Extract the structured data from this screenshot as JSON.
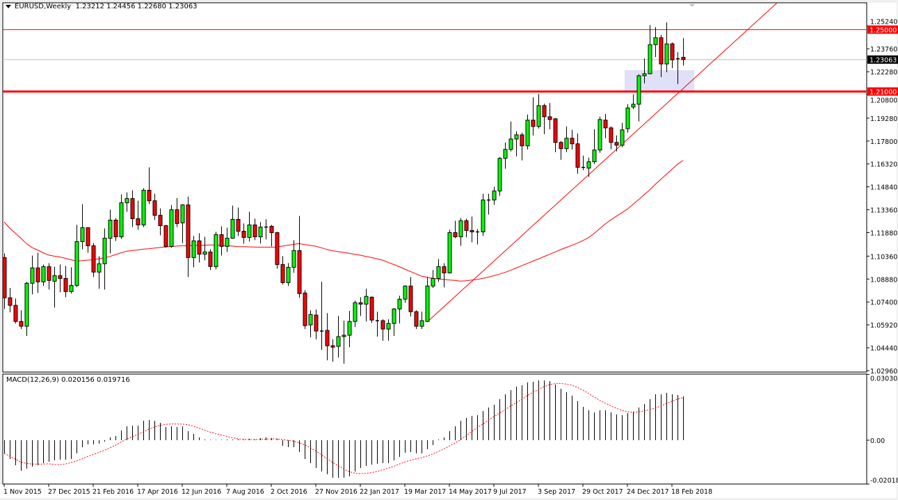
{
  "header": {
    "symbol_timeframe": "EURUSD,Weekly",
    "ohlc": "1.23212 1.24456 1.22680 1.23063"
  },
  "macd_header": {
    "label": "MACD(12,26,9)",
    "values": "0.020156 0.019716"
  },
  "colors": {
    "bull": "#00ff00",
    "bear": "#ff0000",
    "outline": "#000000",
    "ma_line": "#ff0000",
    "trendline": "#ff0000",
    "level_line": "#ff0000",
    "current_price_line": "#c0c0c0",
    "zone_fill": "#e0e0f8",
    "macd_histogram": "#000000",
    "macd_signal": "#ff0000"
  },
  "chart_data": [
    {
      "type": "candlestick",
      "symbol": "EURUSD",
      "timeframe": "Weekly",
      "x_start": "1 Nov 2015",
      "x_tick_labels": [
        "1 Nov 2015",
        "27 Dec 2015",
        "21 Feb 2016",
        "17 Apr 2016",
        "12 Jun 2016",
        "7 Aug 2016",
        "2 Oct 2016",
        "27 Nov 2016",
        "22 Jan 2017",
        "19 Mar 2017",
        "14 May 2017",
        "9 Jul 2017",
        "3 Sep 2017",
        "29 Oct 2017",
        "24 Dec 2017",
        "18 Feb 2018"
      ],
      "x_tick_bars": [
        1,
        9,
        17,
        25,
        33,
        41,
        49,
        57,
        65,
        73,
        81,
        89,
        97,
        105,
        113,
        121
      ],
      "y_tick_labels": [
        "1.25240",
        "1.23760",
        "1.22280",
        "1.20800",
        "1.19280",
        "1.17800",
        "1.16320",
        "1.14840",
        "1.13360",
        "1.11880",
        "1.10360",
        "1.08880",
        "1.07400",
        "1.05920",
        "1.04440",
        "1.02960"
      ],
      "ylim": [
        1.0296,
        1.2671
      ],
      "ohlc_columns": [
        "open",
        "high",
        "low",
        "close"
      ],
      "candles": [
        [
          1.1027,
          1.1054,
          1.0695,
          1.0767
        ],
        [
          1.0767,
          1.083,
          1.0673,
          1.0718
        ],
        [
          1.0718,
          1.0762,
          1.0601,
          1.0614
        ],
        [
          1.0614,
          1.0686,
          1.0565,
          1.0583
        ],
        [
          1.0583,
          1.087,
          1.052,
          1.0861
        ],
        [
          1.0861,
          1.104,
          1.0789,
          1.096
        ],
        [
          1.096,
          1.1058,
          1.0798,
          1.087
        ],
        [
          1.087,
          1.0982,
          1.0843,
          1.0968
        ],
        [
          1.0968,
          1.0991,
          1.082,
          1.0879
        ],
        [
          1.0874,
          1.0968,
          1.0704,
          1.091
        ],
        [
          1.091,
          1.0982,
          1.0803,
          1.0892
        ],
        [
          1.0892,
          1.0973,
          1.0771,
          1.0807
        ],
        [
          1.0807,
          1.0964,
          1.0795,
          1.0847
        ],
        [
          1.0847,
          1.1238,
          1.0834,
          1.113
        ],
        [
          1.113,
          1.1372,
          1.1081,
          1.122
        ],
        [
          1.122,
          1.1224,
          1.1058,
          1.1103
        ],
        [
          1.1103,
          1.1121,
          1.0901,
          1.0933
        ],
        [
          1.0933,
          1.1036,
          1.0825,
          1.0987
        ],
        [
          1.0987,
          1.1215,
          1.082,
          1.1152
        ],
        [
          1.1152,
          1.1336,
          1.1054,
          1.1269
        ],
        [
          1.1269,
          1.1282,
          1.1134,
          1.1161
        ],
        [
          1.1161,
          1.1435,
          1.1148,
          1.1381
        ],
        [
          1.1381,
          1.1448,
          1.1323,
          1.1408
        ],
        [
          1.1408,
          1.1462,
          1.1224,
          1.1278
        ],
        [
          1.1278,
          1.1394,
          1.1206,
          1.1238
        ],
        [
          1.1238,
          1.1475,
          1.1224,
          1.1462
        ],
        [
          1.1462,
          1.161,
          1.1372,
          1.1394
        ],
        [
          1.1394,
          1.1439,
          1.127,
          1.13
        ],
        [
          1.13,
          1.1345,
          1.117,
          1.1233
        ],
        [
          1.1233,
          1.1238,
          1.109,
          1.1099
        ],
        [
          1.1099,
          1.1367,
          1.109,
          1.1336
        ],
        [
          1.1336,
          1.1412,
          1.1224,
          1.1247
        ],
        [
          1.1251,
          1.1372,
          1.1121,
          1.1367
        ],
        [
          1.1367,
          1.1421,
          1.0901,
          1.1027
        ],
        [
          1.1027,
          1.1166,
          1.0964,
          1.1135
        ],
        [
          1.1135,
          1.1184,
          1.0995,
          1.1049
        ],
        [
          1.1049,
          1.1161,
          1.1009,
          1.1063
        ],
        [
          1.1063,
          1.1081,
          1.0946,
          1.0969
        ],
        [
          1.0969,
          1.1193,
          1.0951,
          1.1175
        ],
        [
          1.1175,
          1.1229,
          1.104,
          1.1099
        ],
        [
          1.1099,
          1.122,
          1.1063,
          1.1152
        ],
        [
          1.1152,
          1.1363,
          1.1148,
          1.1274
        ],
        [
          1.1274,
          1.135,
          1.1166,
          1.1197
        ],
        [
          1.1197,
          1.1247,
          1.1117,
          1.1157
        ],
        [
          1.1157,
          1.1323,
          1.113,
          1.1238
        ],
        [
          1.1238,
          1.1278,
          1.1139,
          1.1161
        ],
        [
          1.1161,
          1.1256,
          1.1117,
          1.1224
        ],
        [
          1.1224,
          1.1274,
          1.1144,
          1.1226
        ],
        [
          1.1229,
          1.1238,
          1.1099,
          1.1188
        ],
        [
          1.1188,
          1.1193,
          1.0955,
          1.0982
        ],
        [
          1.0982,
          1.1036,
          1.0852,
          1.0865
        ],
        [
          1.0865,
          1.0991,
          1.0843,
          1.0964
        ],
        [
          1.0964,
          1.1139,
          1.0928,
          1.1072
        ],
        [
          1.1072,
          1.1296,
          1.0767,
          1.0794
        ],
        [
          1.0798,
          1.0816,
          1.0565,
          1.0587
        ],
        [
          1.0592,
          1.0686,
          1.0511,
          1.0659
        ],
        [
          1.0655,
          1.0691,
          1.0498,
          1.0552
        ],
        [
          1.0552,
          1.087,
          1.0431,
          1.0554
        ],
        [
          1.0556,
          1.0668,
          1.0363,
          1.0457
        ],
        [
          1.0457,
          1.0498,
          1.0354,
          1.0448
        ],
        [
          1.0453,
          1.065,
          1.0381,
          1.0516
        ],
        [
          1.0516,
          1.0619,
          1.0341,
          1.0525
        ],
        [
          1.0525,
          1.0682,
          1.0448,
          1.0614
        ],
        [
          1.0614,
          1.0749,
          1.0578,
          1.0735
        ],
        [
          1.0735,
          1.0771,
          1.065,
          1.0726
        ],
        [
          1.0726,
          1.0825,
          1.0614,
          1.0776
        ],
        [
          1.0771,
          1.0776,
          1.0605,
          1.0623
        ],
        [
          1.0619,
          1.0677,
          1.0516,
          1.0621
        ],
        [
          1.0619,
          1.0628,
          1.0489,
          1.0565
        ],
        [
          1.0565,
          1.0628,
          1.0489,
          1.0601
        ],
        [
          1.0601,
          1.07,
          1.052,
          1.0695
        ],
        [
          1.0695,
          1.078,
          1.0601,
          1.0758
        ],
        [
          1.0758,
          1.0847,
          1.0735,
          1.0843
        ],
        [
          1.0843,
          1.0901,
          1.0646,
          1.0677
        ],
        [
          1.0677,
          1.0686,
          1.0565,
          1.0583
        ],
        [
          1.0583,
          1.0677,
          1.0565,
          1.0619
        ],
        [
          1.0614,
          1.0901,
          1.061,
          1.0843
        ],
        [
          1.0843,
          1.0946,
          1.083,
          1.0892
        ],
        [
          1.0892,
          1.1018,
          1.087,
          1.0968
        ],
        [
          1.0968,
          1.0991,
          1.0834,
          1.0928
        ],
        [
          1.0928,
          1.1206,
          1.0924,
          1.1188
        ],
        [
          1.1188,
          1.1265,
          1.1152,
          1.1161
        ],
        [
          1.1161,
          1.1283,
          1.1103,
          1.1265
        ],
        [
          1.1265,
          1.1278,
          1.1157,
          1.1202
        ],
        [
          1.1202,
          1.1292,
          1.1126,
          1.1193
        ],
        [
          1.1193,
          1.1211,
          1.1112,
          1.1195
        ],
        [
          1.1193,
          1.1439,
          1.1166,
          1.1399
        ],
        [
          1.1399,
          1.1439,
          1.1305,
          1.1401
        ],
        [
          1.1399,
          1.1484,
          1.1368,
          1.1457
        ],
        [
          1.1457,
          1.1677,
          1.1426,
          1.1668
        ],
        [
          1.1668,
          1.1771,
          1.1601,
          1.1726
        ],
        [
          1.1726,
          1.1906,
          1.1713,
          1.1793
        ],
        [
          1.1793,
          1.1843,
          1.1681,
          1.182
        ],
        [
          1.182,
          1.1834,
          1.1655,
          1.1749
        ],
        [
          1.1749,
          1.1951,
          1.1726,
          1.1915
        ],
        [
          1.1915,
          1.2063,
          1.1816,
          1.1874
        ],
        [
          1.1874,
          1.2085,
          1.1861,
          1.2009
        ],
        [
          1.2009,
          1.2022,
          1.1825,
          1.1937
        ],
        [
          1.1937,
          1.2026,
          1.1856,
          1.1919
        ],
        [
          1.1924,
          1.1928,
          1.1708,
          1.1771
        ],
        [
          1.1771,
          1.178,
          1.1659,
          1.1731
        ],
        [
          1.1731,
          1.1874,
          1.1708,
          1.1798
        ],
        [
          1.1798,
          1.1852,
          1.1726,
          1.1762
        ],
        [
          1.1762,
          1.1829,
          1.1569,
          1.161
        ],
        [
          1.161,
          1.1686,
          1.1592,
          1.1612
        ],
        [
          1.1605,
          1.1673,
          1.1547,
          1.1646
        ],
        [
          1.1646,
          1.1856,
          1.1632,
          1.1722
        ],
        [
          1.1722,
          1.1937,
          1.1704,
          1.1919
        ],
        [
          1.1915,
          1.1955,
          1.1798,
          1.1865
        ],
        [
          1.1865,
          1.1874,
          1.1726,
          1.1771
        ],
        [
          1.1771,
          1.1816,
          1.1713,
          1.1753
        ],
        [
          1.1753,
          1.1897,
          1.174,
          1.1852
        ],
        [
          1.186,
          1.2018,
          1.1834,
          1.1994
        ],
        [
          1.2,
          1.2081,
          1.1986,
          1.2018
        ],
        [
          1.2018,
          1.2211,
          1.1906,
          1.2202
        ],
        [
          1.2202,
          1.2314,
          1.2152,
          1.2215
        ],
        [
          1.2215,
          1.2529,
          1.2211,
          1.2403
        ],
        [
          1.2403,
          1.2516,
          1.2323,
          1.2448
        ],
        [
          1.2448,
          1.2466,
          1.2193,
          1.2278
        ],
        [
          1.2278,
          1.2547,
          1.2224,
          1.2408
        ],
        [
          1.2408,
          1.2417,
          1.2251,
          1.2305
        ],
        [
          1.2309,
          1.2354,
          1.2148,
          1.2314
        ],
        [
          1.23212,
          1.24456,
          1.2268,
          1.23063
        ]
      ],
      "moving_average": [
        1.1256,
        1.1217,
        1.1185,
        1.1152,
        1.1117,
        1.1092,
        1.1076,
        1.1058,
        1.1043,
        1.1036,
        1.1031,
        1.1022,
        1.1013,
        1.1004,
        1.1007,
        1.101,
        1.1013,
        1.1019,
        1.1025,
        1.1034,
        1.1046,
        1.1058,
        1.1068,
        1.1072,
        1.1076,
        1.1081,
        1.1084,
        1.1088,
        1.1092,
        1.1096,
        1.1098,
        1.1101,
        1.1103,
        1.1104,
        1.1105,
        1.1106,
        1.1107,
        1.1108,
        1.1108,
        1.1106,
        1.1104,
        1.1101,
        1.1098,
        1.1097,
        1.1096,
        1.1095,
        1.1094,
        1.1094,
        1.1094,
        1.1095,
        1.1101,
        1.1107,
        1.1112,
        1.1117,
        1.1111,
        1.1106,
        1.11,
        1.109,
        1.1079,
        1.1071,
        1.1065,
        1.106,
        1.1054,
        1.1048,
        1.1042,
        1.1034,
        1.1027,
        1.1019,
        1.101,
        1.0996,
        1.0982,
        1.0968,
        1.0952,
        1.0937,
        1.0922,
        1.0907,
        1.09,
        1.0893,
        1.0889,
        1.0885,
        1.0882,
        1.0879,
        1.0875,
        1.0877,
        1.0881,
        1.0886,
        1.0893,
        1.09,
        1.091,
        1.092,
        1.0931,
        1.0944,
        1.0959,
        1.0974,
        1.0989,
        1.1004,
        1.1018,
        1.1033,
        1.1048,
        1.1063,
        1.1078,
        1.1092,
        1.1106,
        1.112,
        1.1137,
        1.1156,
        1.1182,
        1.1213,
        1.1244,
        1.127,
        1.1294,
        1.1317,
        1.134,
        1.137,
        1.1401,
        1.1433,
        1.1464,
        1.15,
        1.1532,
        1.1565,
        1.1597,
        1.163,
        1.1655
      ],
      "horizontal_levels": [
        {
          "price": 1.25,
          "label": "1.25000",
          "weight": "thin"
        },
        {
          "price": 1.21,
          "label": "1.21000",
          "weight": "thick"
        }
      ],
      "current_price": {
        "price": 1.23063,
        "label": "1.23063"
      },
      "trendline": {
        "from": {
          "bar": 77,
          "price": 1.061
        },
        "to": {
          "bar": 123,
          "price": 1.2119
        },
        "ray": true
      },
      "zone": {
        "from_bar": 113,
        "to_bar": 125,
        "price_low": 1.21,
        "price_high": 1.2238
      }
    },
    {
      "type": "histogram",
      "indicator": "MACD(12,26,9)",
      "y_tick_labels": [
        "0.030308",
        "0.00",
        "-0.020187"
      ],
      "ylim": [
        -0.020187,
        0.030308
      ],
      "signal_period": 9,
      "macd": [
        -0.00608,
        -0.00864,
        -0.01152,
        -0.01408,
        -0.01312,
        -0.01216,
        -0.01152,
        -0.01056,
        -0.00992,
        -0.00928,
        -0.00896,
        -0.00896,
        -0.00864,
        -0.00608,
        -0.0032,
        -0.00192,
        -0.00192,
        -0.0016,
        -0.00064,
        0.00128,
        0.00192,
        0.00448,
        0.0064,
        0.00672,
        0.00672,
        0.00896,
        0.00928,
        0.00896,
        0.008,
        0.00608,
        0.0064,
        0.00608,
        0.0064,
        0.00416,
        0.00288,
        0.00128,
        0.00032,
        0.00022,
        0.00022,
        0.00022,
        0.00032,
        0.00032,
        0.00016,
        0.00032,
        0.00064,
        0.00032,
        0.00096,
        0.00128,
        0.00096,
        0.00064,
        -0.00256,
        -0.0032,
        -0.0032,
        -0.00544,
        -0.00864,
        -0.01056,
        -0.0128,
        -0.0144,
        -0.01568,
        -0.01728,
        -0.01728,
        -0.01728,
        -0.01664,
        -0.0144,
        -0.0128,
        -0.01184,
        -0.0112,
        -0.01088,
        -0.01056,
        -0.01056,
        -0.00928,
        -0.00768,
        -0.00576,
        -0.00544,
        -0.00608,
        -0.00608,
        -0.00416,
        -0.00224,
        0.0,
        0.00128,
        0.00416,
        0.0064,
        0.00896,
        0.01024,
        0.0112,
        0.01152,
        0.01344,
        0.01504,
        0.01632,
        0.01888,
        0.02112,
        0.02304,
        0.02464,
        0.02528,
        0.02656,
        0.02688,
        0.02752,
        0.02752,
        0.0272,
        0.0256,
        0.02368,
        0.02208,
        0.02048,
        0.01792,
        0.01536,
        0.01376,
        0.0128,
        0.01376,
        0.01376,
        0.0128,
        0.01184,
        0.01152,
        0.01248,
        0.01312,
        0.01504,
        0.01664,
        0.01888,
        0.02112,
        0.02112,
        0.02176,
        0.02112,
        0.0208,
        0.020156
      ]
    }
  ]
}
